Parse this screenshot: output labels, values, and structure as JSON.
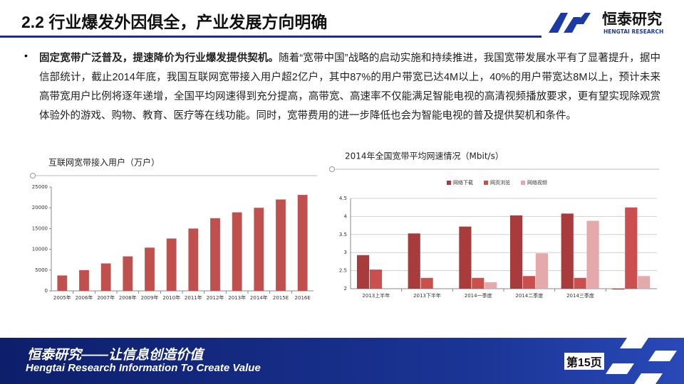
{
  "header": {
    "title": "2.2 行业爆发外因俱全，产业发展方向明确",
    "logo_cn": "恒泰研究",
    "logo_en": "HENGTAI RESEARCH"
  },
  "body": {
    "bullet": "•",
    "lead": "固定宽带广泛普及，提速降价为行业爆发提供契机。",
    "text": "随着“宽带中国”战略的启动实施和持续推进，我国宽带发展水平有了显著提升，据中信部统计，截止2014年底，我国互联网宽带接入用户超2亿户，其中87%的用户带宽已达4M以上，40%的用户带宽达8M以上，预计未来高带宽用户比例将逐年递增，全国平均网速得到充分提高，高带宽、高速率不仅能满足智能电视的高清视频播放要求，更有望实现除观赏体验外的游戏、购物、教育、医疗等在线功能。同时，宽带费用的进一步降低也会为智能电视的普及提供契机和条件。"
  },
  "chart_data": [
    {
      "type": "bar",
      "title": "互联网宽带接入用户（万户）",
      "categories": [
        "2005年",
        "2006年",
        "2007年",
        "2008年",
        "2009年",
        "2010年",
        "2011年",
        "2012年",
        "2013年",
        "2014年",
        "2015E",
        "2016E"
      ],
      "values": [
        3700,
        5000,
        6600,
        8300,
        10400,
        12600,
        15000,
        17500,
        18900,
        20000,
        22000,
        23100
      ],
      "color": "#c0504d",
      "ylim": [
        0,
        25000
      ],
      "yticks": [
        0,
        5000,
        10000,
        15000,
        20000,
        25000
      ],
      "grid": false
    },
    {
      "type": "bar",
      "title": "2014年全国宽带平均网速情况（Mbit/s）",
      "categories": [
        "2013上半年",
        "2013下半年",
        "2014一季度",
        "2014二季度",
        "2014三季度",
        null
      ],
      "series": [
        {
          "name": "网络下载",
          "color": "#a83c3c",
          "values": [
            2.93,
            3.53,
            3.72,
            4.03,
            4.08,
            1.98
          ]
        },
        {
          "name": "网页浏览",
          "color": "#c9504d",
          "values": [
            2.53,
            2.3,
            2.3,
            2.35,
            2.3,
            4.25
          ]
        },
        {
          "name": "网络视频",
          "color": "#e3a9ab",
          "values": [
            null,
            null,
            2.18,
            2.98,
            3.88,
            2.35
          ]
        }
      ],
      "ylim": [
        2,
        4.5
      ],
      "yticks": [
        2,
        2.5,
        3,
        3.5,
        4,
        4.5
      ],
      "grid": true,
      "legend": "top"
    }
  ],
  "footer": {
    "slogan": "恒泰研究——让信息创造价值",
    "slogan_en": "Hengtai Research Information To Create Value",
    "page": "第15页"
  }
}
